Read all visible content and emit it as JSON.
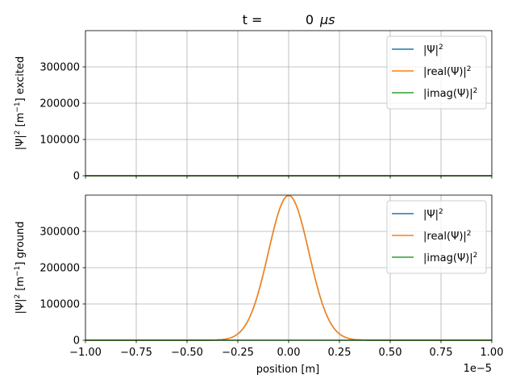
{
  "chart_data": {
    "type": "line",
    "title": {
      "prefix": "t =",
      "value": "0",
      "unit": "μs"
    },
    "offset_text": "1e−5",
    "x_tick_labels": [
      "−1.00",
      "−0.75",
      "−0.50",
      "−0.25",
      "0.00",
      "0.25",
      "0.50",
      "0.75",
      "1.00"
    ],
    "xlim": [
      -1e-05,
      1e-05
    ],
    "xlabel": "position [m]",
    "grid": true,
    "legend_placement": "upper right",
    "gaussian_sigma_m": 1e-06,
    "panels": [
      {
        "name": "excited",
        "ylabel": {
          "pre": "|Ψ|",
          "sup1": "2",
          "mid": " [m",
          "sup2": "−1",
          "post": "] excited"
        },
        "ylim": [
          0,
          400000
        ],
        "y_ticks": [
          0,
          100000,
          200000,
          300000
        ],
        "y_tick_labels": [
          "0",
          "100000",
          "200000",
          "300000"
        ],
        "series": [
          {
            "name": "|Ψ|",
            "sup": "2",
            "color": "#1f77b4",
            "peak": 0
          },
          {
            "name": "|real(Ψ)|",
            "sup": "2",
            "color": "#ff7f0e",
            "peak": 0
          },
          {
            "name": "|imag(Ψ)|",
            "sup": "2",
            "color": "#2ca02c",
            "peak": 0
          }
        ]
      },
      {
        "name": "ground",
        "ylabel": {
          "pre": "|Ψ|",
          "sup1": "2",
          "mid": " [m",
          "sup2": "−1",
          "post": "] ground"
        },
        "ylim": [
          0,
          400000
        ],
        "y_ticks": [
          0,
          100000,
          200000,
          300000
        ],
        "y_tick_labels": [
          "0",
          "100000",
          "200000",
          "300000"
        ],
        "series": [
          {
            "name": "|Ψ|",
            "sup": "2",
            "color": "#1f77b4",
            "peak": 398942
          },
          {
            "name": "|real(Ψ)|",
            "sup": "2",
            "color": "#ff7f0e",
            "peak": 398942
          },
          {
            "name": "|imag(Ψ)|",
            "sup": "2",
            "color": "#2ca02c",
            "peak": 0
          }
        ]
      }
    ]
  }
}
